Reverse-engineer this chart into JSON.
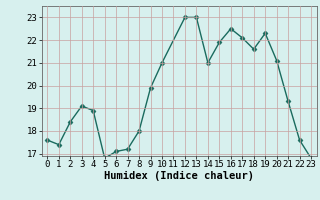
{
  "x": [
    0,
    1,
    2,
    3,
    4,
    5,
    6,
    7,
    8,
    9,
    10,
    12,
    13,
    14,
    15,
    16,
    17,
    18,
    19,
    20,
    21,
    22,
    23
  ],
  "y": [
    17.6,
    17.4,
    18.4,
    19.1,
    18.9,
    16.8,
    17.1,
    17.2,
    18.0,
    19.9,
    21.0,
    23.0,
    23.0,
    21.0,
    21.9,
    22.5,
    22.1,
    21.6,
    22.3,
    21.1,
    19.3,
    17.6,
    16.8
  ],
  "line_color": "#1a6b5e",
  "marker": "D",
  "marker_size": 2.5,
  "bg_color": "#d7f0ee",
  "grid_color": "#c8a0a0",
  "xlabel": "Humidex (Indice chaleur)",
  "ylim": [
    16.9,
    23.5
  ],
  "yticks": [
    17,
    18,
    19,
    20,
    21,
    22,
    23
  ],
  "xlim": [
    -0.5,
    23.5
  ],
  "linewidth": 1.0,
  "xlabel_fontsize": 7.5,
  "tick_fontsize": 6.5
}
